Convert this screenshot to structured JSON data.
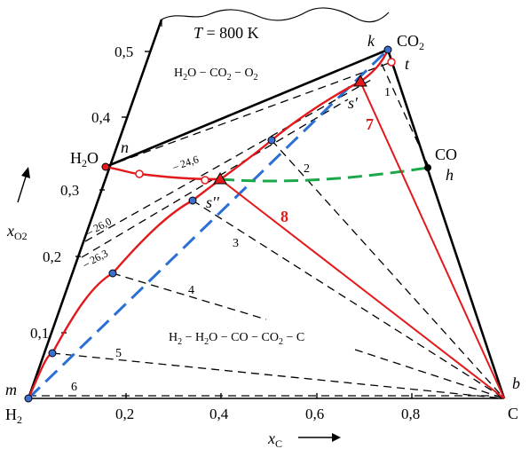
{
  "title": {
    "T_symbol": "T",
    "T_value": " = 800 K"
  },
  "regions": {
    "upper": {
      "h2o": "H",
      "h2o_sub": "2",
      "h2o_rest": "O − CO",
      "co2_sub": "2",
      "o2_part": " − O",
      "o2_sub": "2"
    },
    "lower": {
      "h2": "H",
      "h2_sub": "2",
      "rest1": " − H",
      "h2o_sub": "2",
      "rest2": "O − CO − CO",
      "co2_sub": "2",
      "rest3": " − C"
    }
  },
  "species": {
    "h2o": {
      "main": "H",
      "sub": "2",
      "tail": "O"
    },
    "co2": {
      "main": "CO",
      "sub": "2"
    },
    "co": "CO",
    "h2": {
      "main": "H",
      "sub": "2"
    },
    "c": "C"
  },
  "points": {
    "n": "n",
    "k": "k",
    "t": "t",
    "s_prime": "s′",
    "s_dprime": "s′′",
    "h": "h",
    "m": "m",
    "b": "b"
  },
  "tie_lines": [
    "1",
    "2",
    "3",
    "4",
    "5",
    "6"
  ],
  "paths": [
    "7",
    "8"
  ],
  "isobars": [
    "– 24,6",
    "– 26,0",
    "– 26,3"
  ],
  "axes": {
    "x_label": "x",
    "x_sub": "C",
    "y_label": "x",
    "y_sub": "O2",
    "x_ticks": [
      "0,2",
      "0,4",
      "0,6",
      "0,8"
    ],
    "y_ticks": [
      "0,1",
      "0,2",
      "0,3",
      "0,4",
      "0,5"
    ]
  },
  "colors": {
    "red": "#e3191c",
    "blue": "#2a6fd6",
    "green": "#1aa84a",
    "black": "#000000",
    "blue_dot": "#3c6fd0"
  }
}
